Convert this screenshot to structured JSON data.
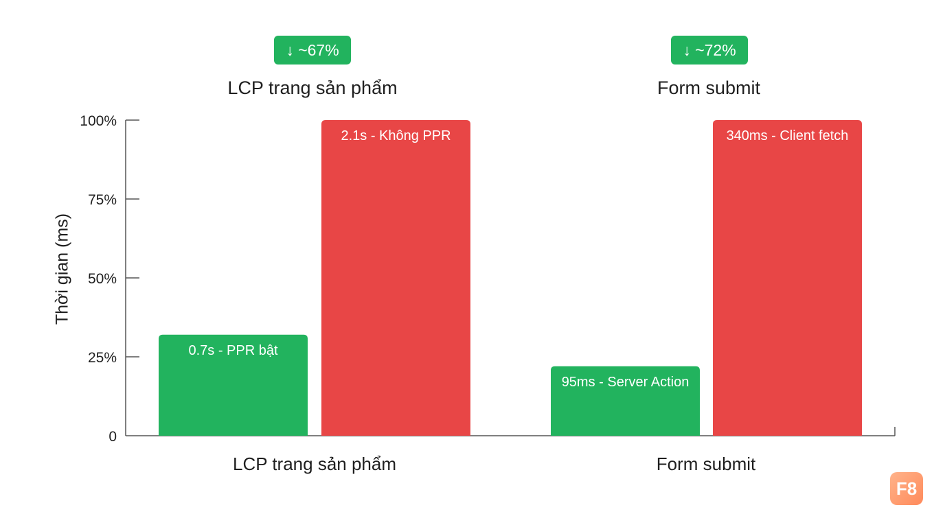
{
  "chart_data": {
    "type": "bar",
    "categories": [
      "LCP trang sản phẩm",
      "Form submit"
    ],
    "group_titles": [
      "LCP trang sản phẩm",
      "Form submit"
    ],
    "badges": [
      "↓ ~67%",
      "↓ ~72%"
    ],
    "ylabel": "Thời gian (ms)",
    "ylim": [
      0,
      100
    ],
    "yticks": [
      {
        "value": 0,
        "label": "0"
      },
      {
        "value": 25,
        "label": "25%"
      },
      {
        "value": 50,
        "label": "50%"
      },
      {
        "value": 75,
        "label": "75%"
      },
      {
        "value": 100,
        "label": "100%"
      }
    ],
    "bars": [
      {
        "category": 0,
        "value": 32,
        "label": "0.7s - PPR bật",
        "color": "#22b35e"
      },
      {
        "category": 0,
        "value": 100,
        "label": "2.1s - Không PPR",
        "color": "#e84646"
      },
      {
        "category": 1,
        "value": 22,
        "label": "95ms - Server Action",
        "color": "#22b35e"
      },
      {
        "category": 1,
        "value": 100,
        "label": "340ms - Client fetch",
        "color": "#e84646"
      }
    ],
    "grid": false,
    "legend": "none"
  },
  "logo": {
    "text": "F8"
  }
}
